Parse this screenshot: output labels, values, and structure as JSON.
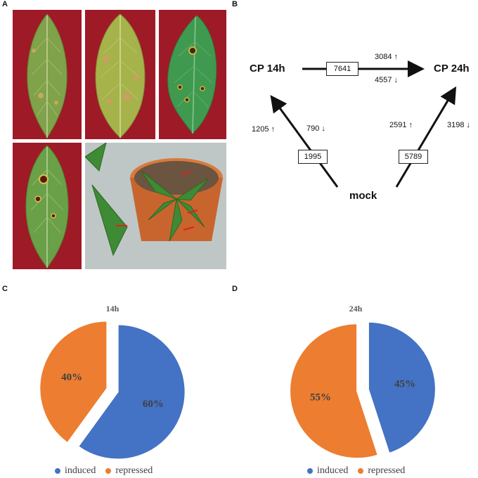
{
  "panels": {
    "a": "A",
    "b": "B",
    "c": "C",
    "d": "D"
  },
  "diagram": {
    "node_cp14": "CP 14h",
    "node_cp24": "CP 24h",
    "node_mock": "mock",
    "box_14_24": "7641",
    "box_mock_14": "1995",
    "box_mock_24": "5789",
    "up_14_24": "3084 ↑",
    "down_14_24": "4557 ↓",
    "up_mock_14": "1205 ↑",
    "down_mock_14": "790 ↓",
    "up_mock_24": "2591 ↑",
    "down_mock_24": "3198 ↓"
  },
  "chart_data": [
    {
      "type": "pie",
      "title": "14h",
      "categories": [
        "induced",
        "repressed"
      ],
      "values": [
        60,
        40
      ],
      "labels": [
        "60%",
        "40%"
      ],
      "colors": [
        "#4472c4",
        "#ed7d31"
      ],
      "legend": "bottom"
    },
    {
      "type": "pie",
      "title": "24h",
      "categories": [
        "induced",
        "repressed"
      ],
      "values": [
        45,
        55
      ],
      "labels": [
        "45%",
        "55%"
      ],
      "colors": [
        "#4472c4",
        "#ed7d31"
      ],
      "legend": "bottom"
    }
  ]
}
